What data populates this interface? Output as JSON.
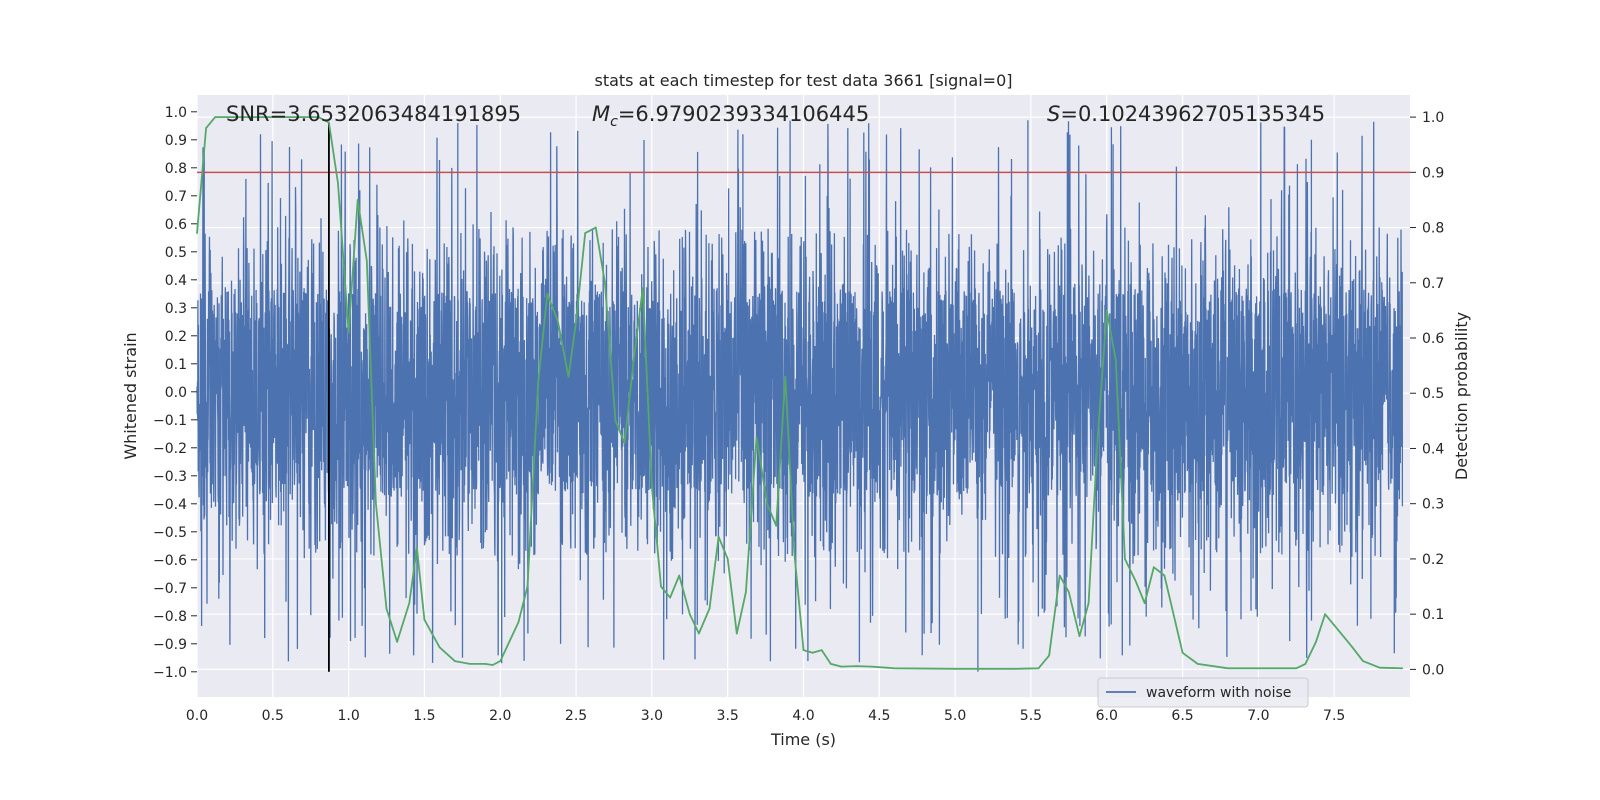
{
  "chart_data": {
    "type": "line",
    "title": "stats at each timestep for test data 3661 [signal=0]",
    "xlabel": "Time (s)",
    "ylabel_left": "Whitened strain",
    "ylabel_right": "Detection probability",
    "xlim": [
      0.0,
      8.0
    ],
    "ylim_left": [
      -1.09,
      1.06
    ],
    "ylim_right": [
      -0.05,
      1.04
    ],
    "x_ticks": [
      "0.0",
      "0.5",
      "1.0",
      "1.5",
      "2.0",
      "2.5",
      "3.0",
      "3.5",
      "4.0",
      "4.5",
      "5.0",
      "5.5",
      "6.0",
      "6.5",
      "7.0",
      "7.5"
    ],
    "y_ticks_left": [
      "1.0",
      "0.9",
      "0.8",
      "0.7",
      "0.6",
      "0.5",
      "0.4",
      "0.3",
      "0.2",
      "0.1",
      "0.0",
      "-0.1",
      "-0.2",
      "-0.3",
      "-0.4",
      "-0.5",
      "-0.6",
      "-0.7",
      "-0.8",
      "-0.9",
      "-1.0"
    ],
    "y_ticks_right": [
      "0.0",
      "0.1",
      "0.2",
      "0.3",
      "0.4",
      "0.5",
      "0.6",
      "0.7",
      "0.8",
      "0.9",
      "1.0"
    ],
    "threshold": 0.9,
    "detection_time": 0.87,
    "annotations": {
      "snr": "SNR=3.6532063484191895",
      "mc_symbol": "M",
      "mc_sub": "c",
      "mc_value": "=6.9790239334106445",
      "s_symbol": "S",
      "s_value": "=0.10243962705135345"
    },
    "legend": {
      "label": "waveform with noise",
      "position": "lower-right"
    },
    "series": [
      {
        "name": "waveform with noise",
        "color": "#4c72b0",
        "kind": "noisy-strain",
        "envelope": {
          "typical": 0.37,
          "max": 0.99
        },
        "notable_peaks": [
          {
            "t": 0.87,
            "v": -0.94
          },
          {
            "t": 1.72,
            "v": 0.96
          },
          {
            "t": 3.6,
            "v": 0.92
          },
          {
            "t": 5.15,
            "v": -1.0
          },
          {
            "t": 5.48,
            "v": 0.97
          },
          {
            "t": 7.35,
            "v": 0.9
          }
        ]
      },
      {
        "name": "detection probability",
        "color": "#55a868",
        "axis": "right",
        "x": [
          0.0,
          0.06,
          0.12,
          0.2,
          0.3,
          0.4,
          0.5,
          0.6,
          0.7,
          0.8,
          0.87,
          0.93,
          1.0,
          1.06,
          1.12,
          1.18,
          1.25,
          1.32,
          1.4,
          1.45,
          1.5,
          1.6,
          1.7,
          1.8,
          1.9,
          1.95,
          2.0,
          2.06,
          2.12,
          2.18,
          2.25,
          2.31,
          2.38,
          2.45,
          2.5,
          2.56,
          2.63,
          2.69,
          2.76,
          2.82,
          2.88,
          2.94,
          3.0,
          3.06,
          3.12,
          3.18,
          3.25,
          3.31,
          3.38,
          3.44,
          3.5,
          3.56,
          3.62,
          3.69,
          3.76,
          3.82,
          3.88,
          3.94,
          4.0,
          4.06,
          4.12,
          4.18,
          4.25,
          4.35,
          4.45,
          4.6,
          5.0,
          5.4,
          5.55,
          5.62,
          5.69,
          5.75,
          5.82,
          5.88,
          5.94,
          6.0,
          6.06,
          6.12,
          6.19,
          6.25,
          6.31,
          6.38,
          6.44,
          6.5,
          6.6,
          6.8,
          7.0,
          7.2,
          7.25,
          7.31,
          7.38,
          7.44,
          7.5,
          7.56,
          7.62,
          7.69,
          7.8,
          7.95
        ],
        "values": [
          0.79,
          0.98,
          1.0,
          1.0,
          1.0,
          1.0,
          1.0,
          1.0,
          1.0,
          1.0,
          0.99,
          0.88,
          0.61,
          0.85,
          0.74,
          0.3,
          0.11,
          0.05,
          0.12,
          0.22,
          0.09,
          0.04,
          0.015,
          0.01,
          0.01,
          0.008,
          0.015,
          0.05,
          0.085,
          0.15,
          0.52,
          0.68,
          0.63,
          0.53,
          0.63,
          0.79,
          0.8,
          0.7,
          0.45,
          0.41,
          0.56,
          0.69,
          0.33,
          0.15,
          0.13,
          0.17,
          0.1,
          0.065,
          0.11,
          0.24,
          0.2,
          0.065,
          0.14,
          0.42,
          0.3,
          0.26,
          0.53,
          0.21,
          0.035,
          0.03,
          0.035,
          0.01,
          0.005,
          0.006,
          0.005,
          0.002,
          0.001,
          0.001,
          0.002,
          0.025,
          0.17,
          0.14,
          0.06,
          0.12,
          0.42,
          0.65,
          0.56,
          0.2,
          0.16,
          0.12,
          0.185,
          0.17,
          0.1,
          0.03,
          0.01,
          0.002,
          0.002,
          0.002,
          0.002,
          0.01,
          0.05,
          0.1,
          0.08,
          0.06,
          0.04,
          0.015,
          0.003,
          0.002
        ]
      }
    ]
  }
}
